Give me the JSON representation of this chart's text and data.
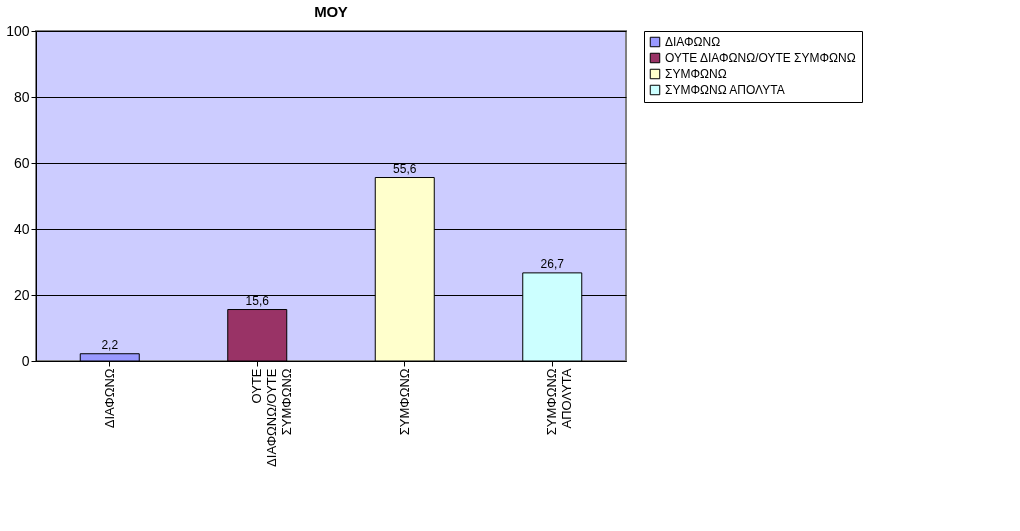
{
  "chart_data": {
    "type": "bar",
    "title": "ΜΟΥ",
    "categories": [
      "ΔΙΑΦΩΝΩ",
      "ΟΥΤΕ ΔΙΑΦΩΝΩ/ΟΥΤΕ ΣΥΜΦΩΝΩ",
      "ΣΥΜΦΩΝΩ",
      "ΣΥΜΦΩΝΩ ΑΠΟΛΥΤΑ"
    ],
    "series": [
      {
        "name": "ΔΙΑΦΩΝΩ",
        "color": "#9999ff",
        "values": [
          2.2,
          null,
          null,
          null
        ],
        "value_labels": [
          "2,2",
          null,
          null,
          null
        ]
      },
      {
        "name": "ΟΥΤΕ ΔΙΑΦΩΝΩ/ΟΥΤΕ ΣΥΜΦΩΝΩ",
        "color": "#993366",
        "values": [
          null,
          15.6,
          null,
          null
        ],
        "value_labels": [
          null,
          "15,6",
          null,
          null
        ]
      },
      {
        "name": "ΣΥΜΦΩΝΩ",
        "color": "#ffffcc",
        "values": [
          null,
          null,
          55.6,
          null
        ],
        "value_labels": [
          null,
          null,
          "55,6",
          null
        ]
      },
      {
        "name": "ΣΥΜΦΩΝΩ ΑΠΟΛΥΤΑ",
        "color": "#ccffff",
        "values": [
          null,
          null,
          null,
          26.7
        ],
        "value_labels": [
          null,
          null,
          null,
          "26,7"
        ]
      }
    ],
    "ylim": [
      0,
      100
    ],
    "yticks": [
      0,
      20,
      40,
      60,
      80,
      100
    ],
    "grid": "y",
    "legend": "right"
  }
}
